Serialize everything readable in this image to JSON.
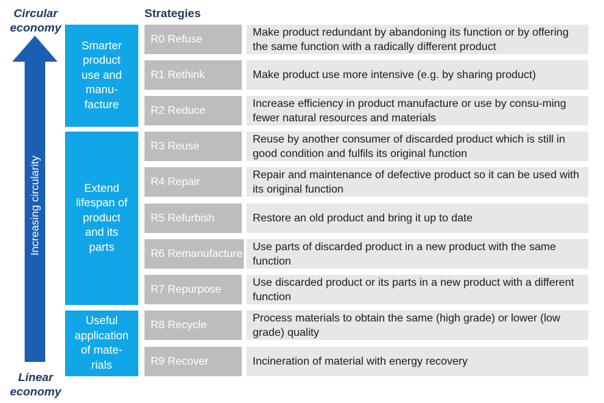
{
  "labels": {
    "top": "Circular\neconomy",
    "bottom": "Linear\neconomy",
    "arrow": "Increasing circularity",
    "header": "Strategies"
  },
  "colors": {
    "group_blue": "#11a6e8",
    "arrow_blue": "#1a5fb4",
    "code_gray": "#bdbdbd",
    "desc_gray": "#e7e7e7",
    "title_navy": "#1f3864"
  },
  "groups": [
    {
      "label": "Smarter\nproduct\nuse and\nmanu-\nfacture"
    },
    {
      "label": "Extend\nlifespan of\nproduct\nand its\nparts"
    },
    {
      "label": "Useful\napplication\nof mate-\nrials"
    }
  ],
  "strategies": [
    {
      "code": "R0 Refuse",
      "description": "Make product redundant by abandoning its function or by offering the same function with a radically different product"
    },
    {
      "code": "R1 Rethink",
      "description": "Make product use more intensive (e.g. by sharing product)"
    },
    {
      "code": "R2 Reduce",
      "description": "Increase efficiency in product manufacture or use by consu-ming fewer natural resources and materials"
    },
    {
      "code": "R3 Reuse",
      "description": "Reuse by another consumer of discarded product which is still in good condition and fulfils its original function"
    },
    {
      "code": "R4 Repair",
      "description": "Repair and maintenance of defective product so it can be used with its original function"
    },
    {
      "code": "R5 Refurbish",
      "description": "Restore an old product and bring it up to date"
    },
    {
      "code": "R6 Remanufacture",
      "description": "Use parts of discarded product in a new product with the same function"
    },
    {
      "code": "R7 Repurpose",
      "description": "Use discarded product or its parts in a new product with a different function"
    },
    {
      "code": "R8 Recycle",
      "description": "Process materials to obtain the same (high grade) or lower (low grade) quality"
    },
    {
      "code": "R9 Recover",
      "description": "Incineration of material with energy recovery"
    }
  ]
}
